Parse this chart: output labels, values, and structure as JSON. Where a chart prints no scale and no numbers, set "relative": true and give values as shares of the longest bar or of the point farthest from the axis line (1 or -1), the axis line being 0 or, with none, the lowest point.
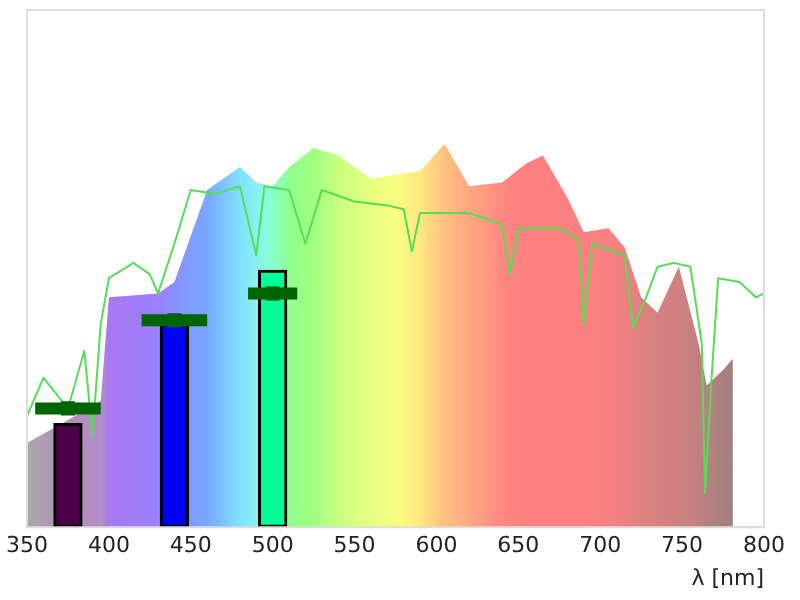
{
  "chart_data": {
    "type": "area",
    "relative": true,
    "xlabel": "λ [nm]",
    "xlim": [
      350,
      800
    ],
    "xticks": [
      350,
      400,
      450,
      500,
      550,
      600,
      650,
      700,
      750,
      800
    ],
    "tick_labels": "x",
    "grid": false,
    "legend": false,
    "series": [
      {
        "x": [
          350,
          375,
          395,
          400,
          430,
          440,
          460,
          480,
          490,
          500,
          510,
          525,
          540,
          560,
          575,
          590,
          605,
          620,
          640,
          655,
          665,
          680,
          690,
          705,
          715,
          725,
          735,
          748,
          760,
          765,
          775,
          781
        ],
        "values": [
          0.22,
          0.28,
          0.33,
          0.6,
          0.61,
          0.64,
          0.88,
          0.94,
          0.9,
          0.89,
          0.94,
          0.99,
          0.97,
          0.91,
          0.92,
          0.93,
          1,
          0.89,
          0.9,
          0.95,
          0.97,
          0.86,
          0.77,
          0.78,
          0.73,
          0.6,
          0.56,
          0.68,
          0.48,
          0.37,
          0.41,
          0.44
        ],
        "colors": [
          "#aaa6a8",
          "#b090b8",
          "#b48ec8",
          "#a878f0",
          "#9a80ff",
          "#8890ff",
          "#78a8ff",
          "#80e0ff",
          "#88f0f0",
          "#88ffcc",
          "#90ff90",
          "#a0ff80",
          "#c8ff80",
          "#e8ff80",
          "#f8ff80",
          "#ffe880",
          "#ffc080",
          "#ffa880",
          "#ff8880",
          "#ff8080",
          "#ff8080",
          "#ff8080",
          "#ff8080",
          "#f88080",
          "#f08080",
          "#e08080",
          "#d88080",
          "#d08080",
          "#c08080",
          "#b88080",
          "#a88080",
          "#a08080"
        ]
      },
      {
        "type": "line",
        "color": "#55dd55",
        "x": [
          350,
          360,
          375,
          385,
          390,
          395,
          400,
          415,
          425,
          430,
          440,
          450,
          465,
          480,
          490,
          495,
          510,
          520,
          530,
          550,
          570,
          580,
          585,
          590,
          620,
          640,
          645,
          650,
          675,
          687,
          690,
          695,
          715,
          720,
          728,
          735,
          745,
          755,
          762,
          764,
          768,
          772,
          785,
          795,
          800
        ],
        "values": [
          0.29,
          0.39,
          0.31,
          0.46,
          0.24,
          0.53,
          0.65,
          0.69,
          0.66,
          0.61,
          0.74,
          0.88,
          0.87,
          0.89,
          0.71,
          0.89,
          0.88,
          0.74,
          0.88,
          0.85,
          0.84,
          0.83,
          0.72,
          0.82,
          0.82,
          0.79,
          0.66,
          0.78,
          0.78,
          0.75,
          0.53,
          0.74,
          0.71,
          0.52,
          0.6,
          0.68,
          0.69,
          0.68,
          0.48,
          0.09,
          0.39,
          0.65,
          0.64,
          0.6,
          0.61
        ]
      },
      {
        "type": "bar",
        "x": [
          375,
          440,
          500
        ],
        "values": [
          0.27,
          0.53,
          0.67
        ],
        "colors": [
          "#4b0048",
          "#0000ff",
          "#00ff99"
        ]
      },
      {
        "type": "scatter",
        "marker": "square",
        "color": "#006400",
        "x": [
          375,
          440,
          500
        ],
        "values": [
          0.31,
          0.54,
          0.61
        ],
        "xerrors": [
          20,
          20,
          15
        ]
      }
    ]
  }
}
